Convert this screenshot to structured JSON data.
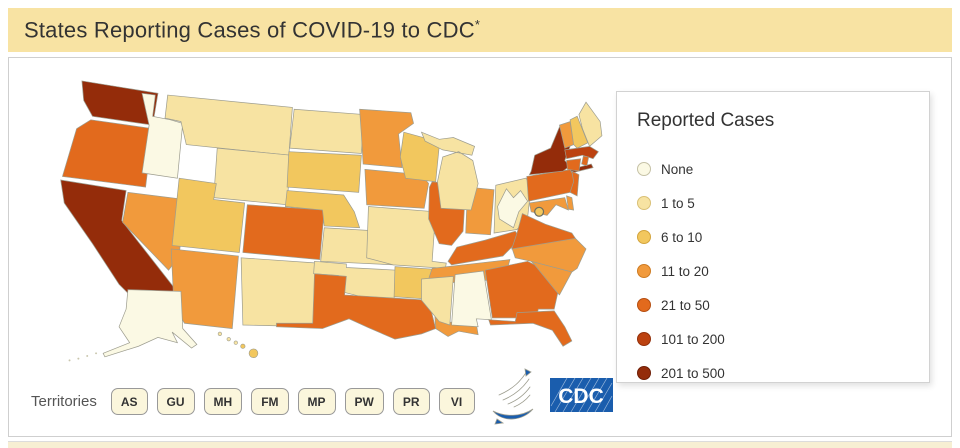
{
  "header": {
    "title": "States Reporting Cases of COVID-19 to CDC",
    "asterisk": "*",
    "background": "#F8E3A3"
  },
  "legend": {
    "title": "Reported Cases"
  },
  "territories": {
    "label": "Territories",
    "buttons": [
      "AS",
      "GU",
      "MH",
      "FM",
      "MP",
      "PW",
      "PR",
      "VI"
    ]
  },
  "logos": {
    "cdc_text": "CDC",
    "hhs_icon": "hhs-eagle",
    "brand_blue": "#1A5DAD"
  },
  "chart_data": {
    "type": "heatmap",
    "subtype": "us-state-choropleth",
    "title": "States Reporting Cases of COVID-19 to CDC*",
    "legend_title": "Reported Cases",
    "legend_position": "right",
    "bins": [
      {
        "label": "None",
        "color": "#FBF9E4",
        "border": "#C5C1A6"
      },
      {
        "label": "1 to 5",
        "color": "#F7E3A2",
        "border": "#D9C076"
      },
      {
        "label": "6 to 10",
        "color": "#F2C75E",
        "border": "#D3A43C"
      },
      {
        "label": "11 to 20",
        "color": "#F19A3C",
        "border": "#CE7B22"
      },
      {
        "label": "21 to 50",
        "color": "#E26A1D",
        "border": "#B54F12"
      },
      {
        "label": "101 to 200",
        "color": "#BC4210",
        "border": "#93300A"
      },
      {
        "label": "201 to 500",
        "color": "#942C0A",
        "border": "#6E1F07"
      }
    ],
    "state_values": {
      "WA": "201 to 500",
      "OR": "21 to 50",
      "CA": "201 to 500",
      "ID": "None",
      "NV": "11 to 20",
      "MT": "1 to 5",
      "WY": "1 to 5",
      "UT": "6 to 10",
      "CO": "21 to 50",
      "AZ": "11 to 20",
      "NM": "1 to 5",
      "ND": "1 to 5",
      "SD": "6 to 10",
      "NE": "6 to 10",
      "KS": "1 to 5",
      "OK": "1 to 5",
      "TX": "21 to 50",
      "MN": "11 to 20",
      "IA": "11 to 20",
      "MO": "1 to 5",
      "AR": "6 to 10",
      "LA": "11 to 20",
      "WI": "6 to 10",
      "IL": "21 to 50",
      "IN": "11 to 20",
      "MI": "1 to 5",
      "OH": "1 to 5",
      "KY": "21 to 50",
      "TN": "11 to 20",
      "MS": "1 to 5",
      "AL": "None",
      "GA": "21 to 50",
      "FL": "21 to 50",
      "SC": "11 to 20",
      "NC": "11 to 20",
      "VA": "21 to 50",
      "WV": "None",
      "MD": "11 to 20",
      "DE": "11 to 20",
      "DC": "6 to 10",
      "PA": "21 to 50",
      "NJ": "21 to 50",
      "NY": "201 to 500",
      "CT": "21 to 50",
      "RI": "21 to 50",
      "MA": "101 to 200",
      "VT": "11 to 20",
      "NH": "6 to 10",
      "ME": "1 to 5",
      "AK": "None",
      "HI": "6 to 10"
    }
  }
}
